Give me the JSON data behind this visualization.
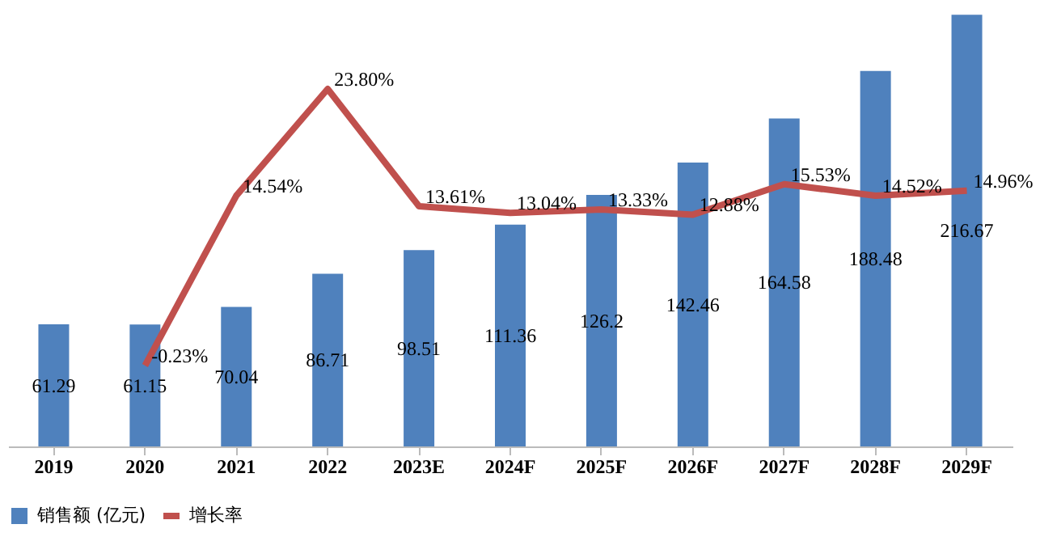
{
  "chart_data": {
    "type": "bar",
    "categories": [
      "2019",
      "2020",
      "2021",
      "2022",
      "2023E",
      "2024F",
      "2025F",
      "2026F",
      "2027F",
      "2028F",
      "2029F"
    ],
    "series": [
      {
        "name": "销售额 (亿元)",
        "color": "#4f81bd",
        "values": [
          61.29,
          61.15,
          70.04,
          86.71,
          98.51,
          111.36,
          126.2,
          142.46,
          164.58,
          188.48,
          216.67
        ]
      },
      {
        "name": "增长率",
        "color": "#c0504d",
        "type": "line",
        "axis": "y2",
        "values": [
          null,
          -0.23,
          14.54,
          23.8,
          13.61,
          13.04,
          13.33,
          12.88,
          15.53,
          14.52,
          14.96
        ],
        "value_labels": [
          null,
          "-0.23%",
          "14.54%",
          "23.80%",
          "13.61%",
          "13.04%",
          "13.33%",
          "12.88%",
          "15.53%",
          "14.52%",
          "14.96%"
        ]
      }
    ],
    "data_labels": true,
    "legend": "bottom",
    "grid": false,
    "tick_labels": "x",
    "marker": "none",
    "line_style": "solid"
  }
}
